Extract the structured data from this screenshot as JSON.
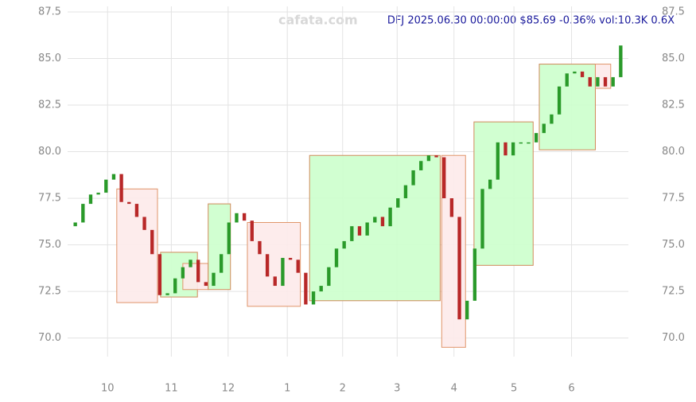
{
  "chart_data": {
    "type": "candlestick",
    "title": "DFJ 2025.06.30 00:00:00 $85.69 -0.36% vol:10.3K 0.6X",
    "watermark": "cafata.com",
    "xlim": [
      -1,
      72
    ],
    "xticks": [
      {
        "value": 4.2,
        "label": "10"
      },
      {
        "value": 12.5,
        "label": "11"
      },
      {
        "value": 19.9,
        "label": "12"
      },
      {
        "value": 27.6,
        "label": "1"
      },
      {
        "value": 34.8,
        "label": "2"
      },
      {
        "value": 41.9,
        "label": "3"
      },
      {
        "value": 49.3,
        "label": "4"
      },
      {
        "value": 57.1,
        "label": "5"
      },
      {
        "value": 64.6,
        "label": "6"
      }
    ],
    "ylim": [
      69.0,
      87.8
    ],
    "yticks": [
      {
        "value": 70,
        "label": "70.0"
      },
      72.5,
      {
        "value": 75,
        "label": "75.0"
      },
      77.5,
      {
        "value": 80,
        "label": "80.0"
      },
      82.5,
      {
        "value": 85,
        "label": "85.0"
      },
      87.5
    ],
    "grid": true,
    "up_color": "#2a9a2a",
    "down_color": "#b82828",
    "open": [
      76.0,
      76.2,
      77.2,
      77.7,
      77.8,
      78.5,
      78.8,
      77.3,
      77.2,
      76.5,
      75.8,
      74.5,
      72.3,
      72.4,
      73.2,
      73.8,
      74.2,
      73.0,
      72.8,
      73.5,
      74.5,
      76.2,
      76.7,
      76.3,
      75.2,
      74.5,
      73.3,
      72.8,
      74.3,
      74.2,
      73.5,
      71.8,
      72.5,
      72.8,
      73.8,
      74.8,
      75.2,
      76.0,
      75.5,
      76.2,
      76.5,
      76.0,
      77.0,
      77.5,
      78.2,
      79.0,
      79.5,
      79.8,
      79.7,
      77.5,
      76.5,
      71.0,
      72.0,
      74.8,
      78.0,
      78.5,
      80.5,
      79.8,
      80.5,
      80.5,
      80.5,
      81.0,
      81.5,
      82.0,
      83.5,
      84.2,
      84.3,
      84.0,
      83.5,
      84.0,
      83.5,
      84.0
    ],
    "close": [
      76.2,
      77.2,
      77.7,
      77.8,
      78.5,
      78.8,
      77.3,
      77.2,
      76.5,
      75.8,
      74.5,
      72.3,
      72.4,
      73.2,
      73.8,
      74.2,
      73.0,
      72.8,
      73.5,
      74.5,
      76.2,
      76.7,
      76.3,
      75.2,
      74.5,
      73.3,
      72.8,
      74.3,
      74.2,
      73.5,
      71.8,
      72.5,
      72.8,
      73.8,
      74.8,
      75.2,
      76.0,
      75.5,
      76.2,
      76.5,
      76.0,
      77.0,
      77.5,
      78.2,
      79.0,
      79.5,
      79.8,
      79.7,
      77.5,
      76.5,
      71.0,
      72.0,
      74.8,
      78.0,
      78.5,
      80.5,
      79.8,
      80.5,
      80.5,
      80.5,
      81.0,
      81.5,
      82.0,
      83.5,
      84.2,
      84.3,
      84.0,
      83.5,
      84.0,
      83.5,
      84.0,
      85.7
    ],
    "boxes": [
      {
        "x": [
          5.4,
          10.7
        ],
        "range": [
          71.9,
          78.0
        ],
        "color": "red"
      },
      {
        "x": [
          11.1,
          15.9
        ],
        "range": [
          72.2,
          74.6
        ],
        "color": "green"
      },
      {
        "x": [
          14.0,
          17.3
        ],
        "range": [
          72.6,
          74.0
        ],
        "color": "red"
      },
      {
        "x": [
          17.3,
          20.2
        ],
        "range": [
          72.6,
          77.2
        ],
        "color": "green"
      },
      {
        "x": [
          22.4,
          29.3
        ],
        "range": [
          71.7,
          76.2
        ],
        "color": "red"
      },
      {
        "x": [
          30.5,
          47.5
        ],
        "range": [
          72.0,
          79.8
        ],
        "color": "green"
      },
      {
        "x": [
          47.7,
          50.8
        ],
        "range": [
          69.5,
          79.8
        ],
        "color": "red"
      },
      {
        "x": [
          51.9,
          59.6
        ],
        "range": [
          73.9,
          81.6
        ],
        "color": "green"
      },
      {
        "x": [
          60.4,
          67.7
        ],
        "range": [
          80.1,
          84.7
        ],
        "color": "green"
      },
      {
        "x": [
          67.7,
          69.7
        ],
        "range": [
          83.4,
          84.7
        ],
        "color": "red"
      }
    ]
  }
}
